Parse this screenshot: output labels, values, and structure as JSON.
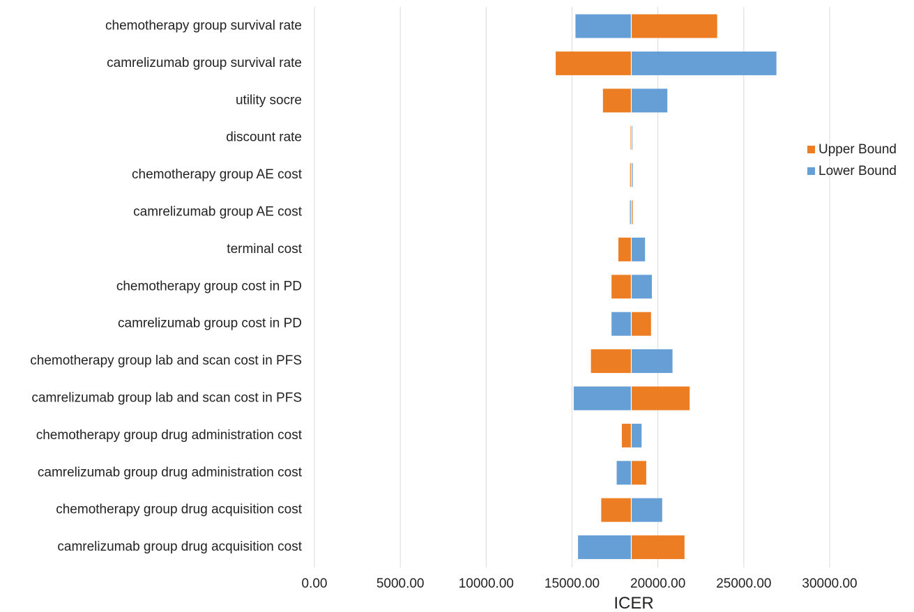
{
  "chart_data": {
    "type": "bar",
    "orientation": "horizontal",
    "subtype": "tornado",
    "title": "",
    "xlabel": "ICER",
    "ylabel": "",
    "base_value": 18450,
    "xlim": [
      0,
      30000
    ],
    "xticks": [
      0,
      5000,
      10000,
      15000,
      20000,
      25000,
      30000
    ],
    "xtick_labels": [
      "0.00",
      "5000.00",
      "10000.00",
      "15000.00",
      "20000.00",
      "25000.00",
      "30000.00"
    ],
    "grid": "vertical",
    "legend_position": "right",
    "categories": [
      "chemotherapy group survival rate",
      "camrelizumab group survival rate",
      "utility socre",
      "discount rate",
      "chemotherapy group AE cost",
      "camrelizumab group AE cost",
      "terminal cost",
      "chemotherapy group cost in PD",
      "camrelizumab group cost in PD",
      "chemotherapy group lab and scan cost in PFS",
      "camrelizumab group lab and scan cost in PFS",
      "chemotherapy group drug administration cost",
      "camrelizumab group drug administration cost",
      "chemotherapy group drug acquisition cost",
      "camrelizumab group drug acquisition cost"
    ],
    "series": [
      {
        "name": "Upper Bound",
        "color": "#ED7D22",
        "values": [
          23450,
          14050,
          16800,
          18400,
          18380,
          18530,
          17700,
          17300,
          19600,
          16100,
          21850,
          17900,
          19320,
          16700,
          21550
        ]
      },
      {
        "name": "Lower Bound",
        "color": "#669FD6",
        "values": [
          15200,
          26900,
          20550,
          18480,
          18530,
          18370,
          19250,
          19650,
          17300,
          20850,
          15100,
          19050,
          17600,
          20250,
          15350
        ]
      }
    ]
  }
}
